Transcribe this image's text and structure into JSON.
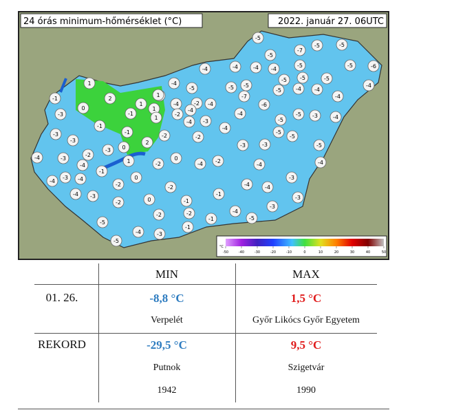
{
  "map": {
    "title": "24 órás minimum-hőmérséklet (°C)",
    "date": "2022. január 27. 06UTC",
    "stations": [
      -5,
      -5,
      -7,
      -5,
      -5,
      -6,
      -5,
      -5,
      -4,
      -4,
      -4,
      -4,
      -5,
      -5,
      -5,
      -4,
      -4,
      -5,
      -5,
      -5,
      -4,
      -4,
      -4,
      -5,
      -4,
      -2,
      -4,
      -4,
      -4,
      -2,
      -3,
      -4,
      -4,
      -4,
      -6,
      -7,
      -5,
      -5,
      -3,
      -4,
      -5,
      -5,
      -3,
      -3,
      -5,
      -4,
      -4,
      -2,
      -4,
      0,
      -2,
      -2,
      -2,
      1,
      2,
      0,
      -1,
      -3,
      1,
      1,
      1,
      1,
      -1,
      -1,
      -1,
      2,
      0,
      -3,
      1,
      -2,
      -3,
      -3,
      -3,
      -4,
      -4,
      -1,
      -4,
      -3,
      -4,
      -4,
      -3,
      -2,
      0,
      -2,
      0,
      -2,
      -1,
      -1,
      -4,
      -4,
      -3,
      -3,
      -3,
      -4,
      -5,
      -2,
      -2,
      -1,
      -1,
      -4,
      -5,
      -3,
      -5
    ],
    "legend": {
      "unit": "°C",
      "ticks": [
        -50,
        -40,
        -30,
        -20,
        -10,
        0,
        10,
        20,
        30,
        40,
        50
      ]
    }
  },
  "table": {
    "header": [
      "MIN",
      "MAX"
    ],
    "rows": [
      {
        "label": "01. 26.",
        "min": "-8,8 °C",
        "min_place": "Verpelét",
        "max": "1,5 °C",
        "max_place": "Győr Likócs Győr Egyetem"
      },
      {
        "label": "REKORD",
        "min": "-29,5 °C",
        "min_place": "Putnok",
        "min_year": "1942",
        "max": "9,5 °C",
        "max_place": "Szigetvár",
        "max_year": "1990"
      }
    ]
  }
}
